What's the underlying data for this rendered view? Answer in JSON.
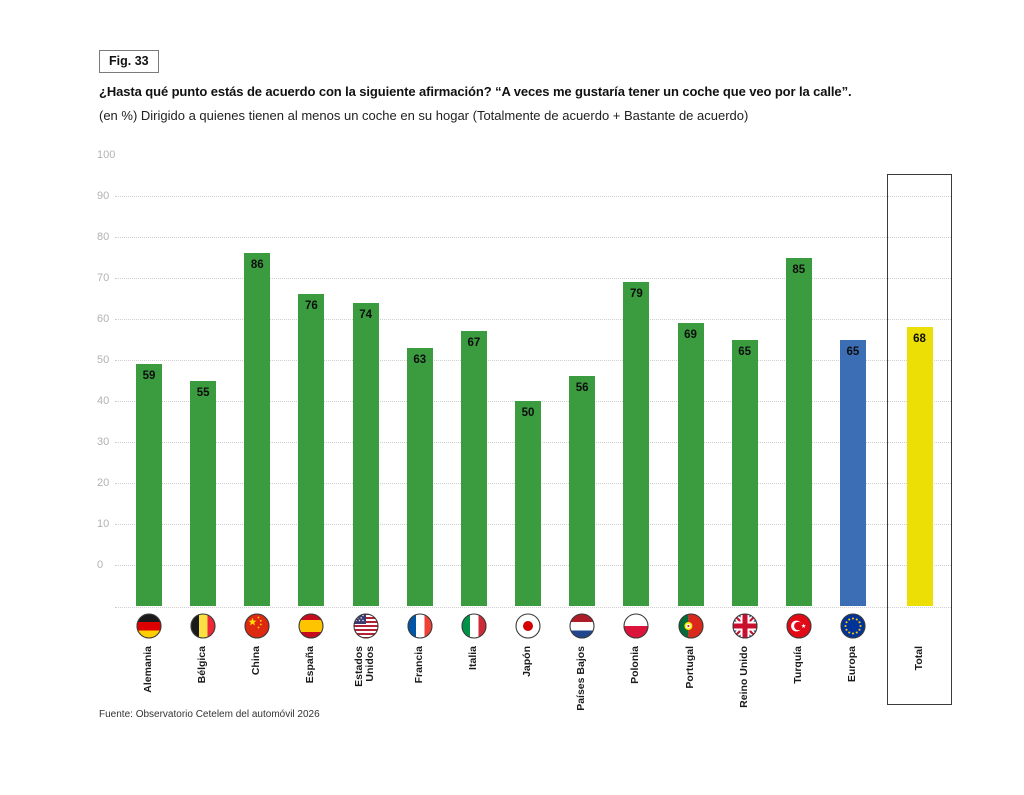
{
  "fig": {
    "label": "Fig. 33"
  },
  "header": {
    "title": "¿Hasta qué punto estás de acuerdo con la siguiente afirmación? “A veces me gustaría tener un coche que veo por la calle”.",
    "subtitle": "(en %) Dirigido a quienes tienen al menos un coche en su hogar (Totalmente de acuerdo + Bastante de acuerdo)"
  },
  "source": "Fuente: Observatorio Cetelem del automóvil 2026",
  "chart_data": {
    "type": "bar",
    "title": "¿Hasta qué punto estás de acuerdo con la siguiente afirmación? “A veces me gustaría tener un coche que veo por la calle”.",
    "subtitle": "(en %) Dirigido a quienes tienen al menos un coche en su hogar (Totalmente de acuerdo + Bastante de acuerdo)",
    "unit": "%",
    "ylim": [
      0,
      100
    ],
    "yticks": [
      100,
      90,
      80,
      70,
      60,
      50,
      40,
      30,
      20,
      10,
      0
    ],
    "grid": "horizontal-dotted",
    "legend": "none",
    "categories": [
      "Alemania",
      "Bélgica",
      "China",
      "España",
      "Estados\nUnidos",
      "Francia",
      "Italia",
      "Japón",
      "Países Bajos",
      "Polonia",
      "Portugal",
      "Reino Unido",
      "Turquía",
      "Europa",
      "Total"
    ],
    "values": [
      59,
      55,
      86,
      76,
      74,
      63,
      67,
      50,
      56,
      79,
      69,
      65,
      85,
      65,
      68
    ],
    "bar_colors": [
      "#3a9b3f",
      "#3a9b3f",
      "#3a9b3f",
      "#3a9b3f",
      "#3a9b3f",
      "#3a9b3f",
      "#3a9b3f",
      "#3a9b3f",
      "#3a9b3f",
      "#3a9b3f",
      "#3a9b3f",
      "#3a9b3f",
      "#3a9b3f",
      "#3b6eb5",
      "#ecdf05"
    ],
    "flags": [
      "de",
      "be",
      "cn",
      "es",
      "us",
      "fr",
      "it",
      "jp",
      "nl",
      "pl",
      "pt",
      "gb",
      "tr",
      "eu",
      null
    ],
    "total_boxed": true,
    "colors": {
      "country_bar": "#3a9b3f",
      "europa_bar": "#3b6eb5",
      "total_bar": "#ecdf05"
    }
  }
}
